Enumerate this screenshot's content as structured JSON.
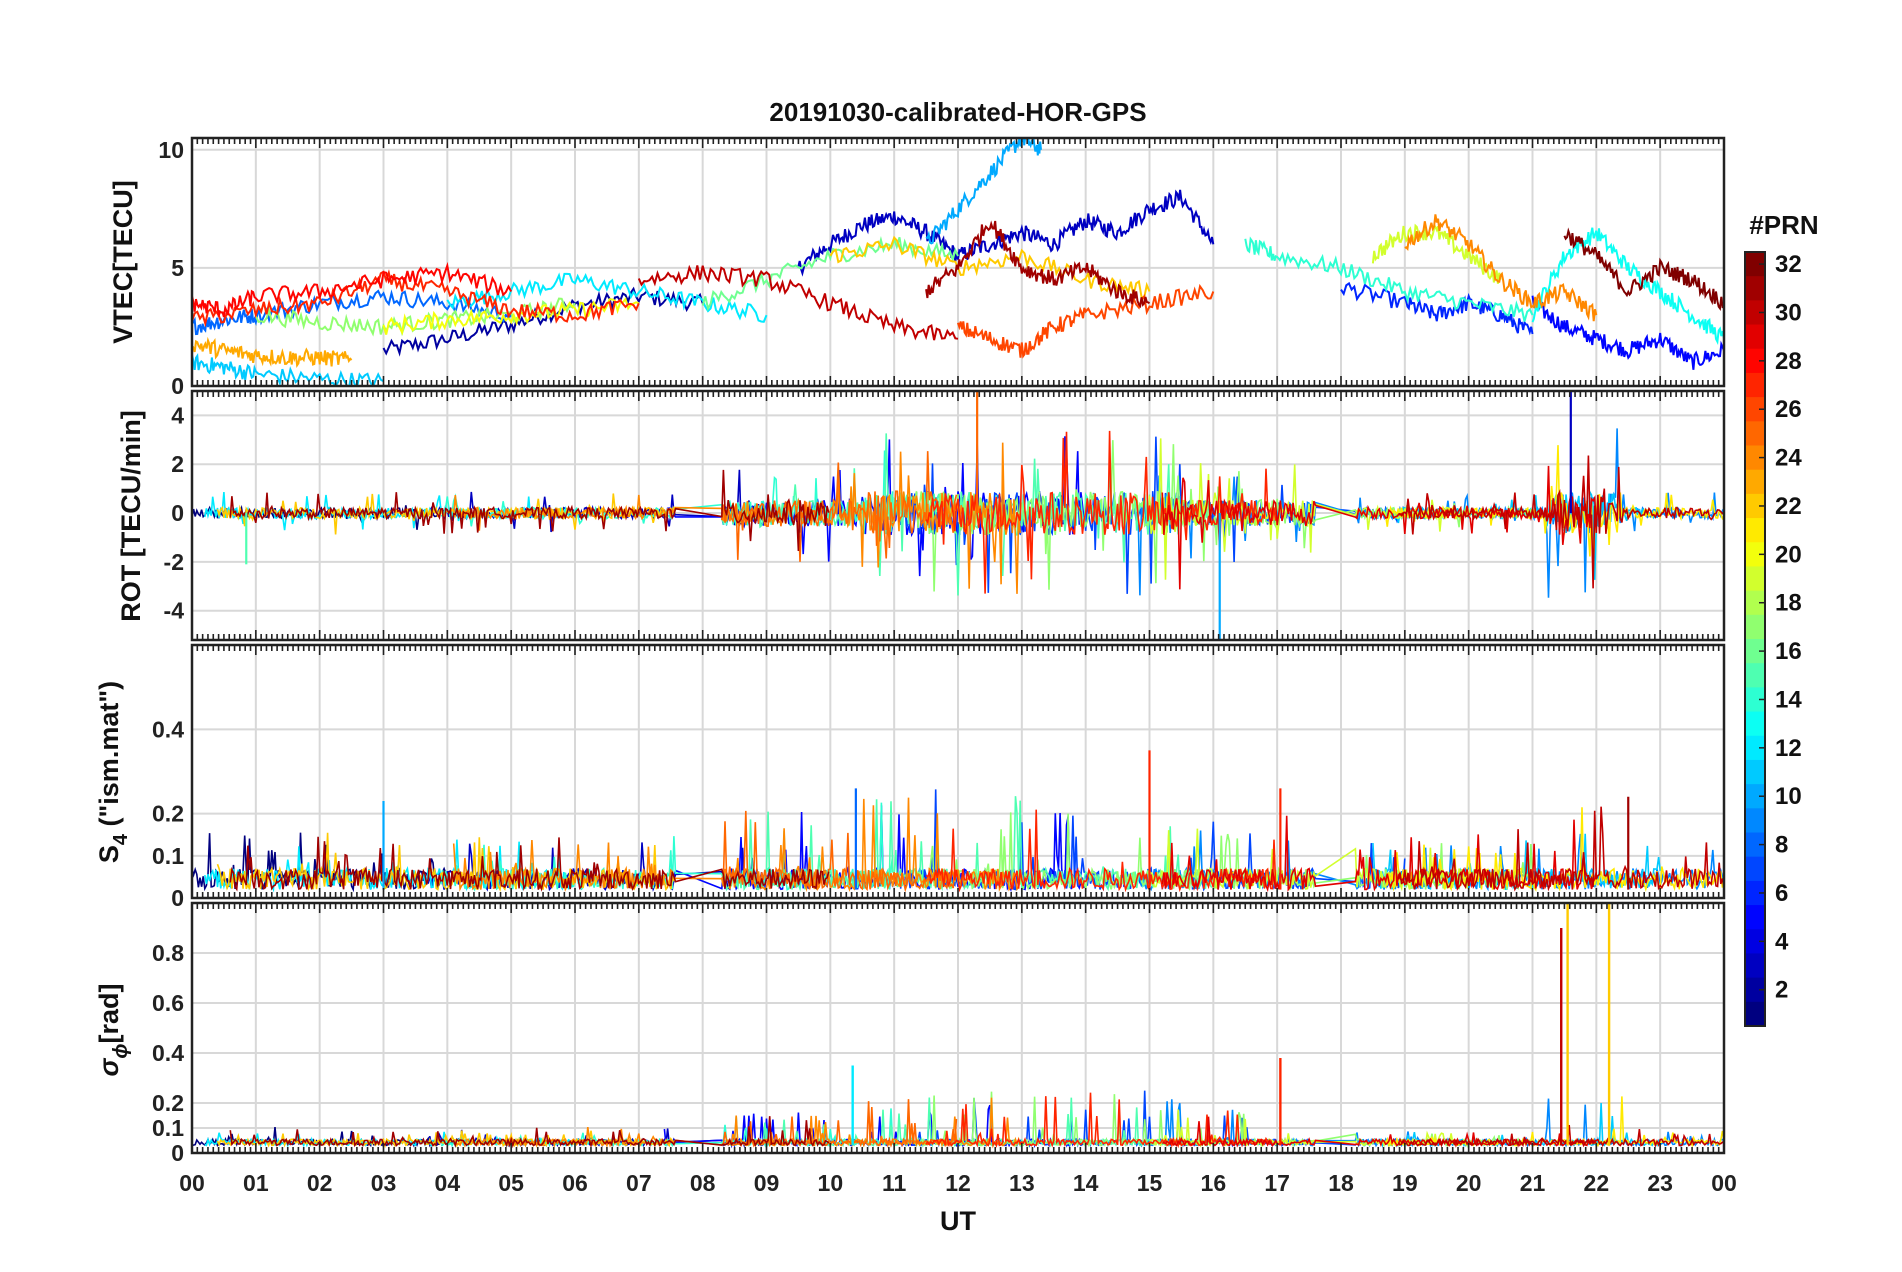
{
  "figure": {
    "title": "20191030-calibrated-HOR-GPS",
    "xlabel": "UT",
    "x_ticks": [
      "00",
      "01",
      "02",
      "03",
      "04",
      "05",
      "06",
      "07",
      "08",
      "09",
      "10",
      "11",
      "12",
      "13",
      "14",
      "15",
      "16",
      "17",
      "18",
      "19",
      "20",
      "21",
      "22",
      "23",
      "00"
    ]
  },
  "colorbar": {
    "title": "#PRN",
    "range": [
      1,
      32
    ],
    "ticks": [
      "2",
      "4",
      "6",
      "8",
      "10",
      "12",
      "14",
      "16",
      "18",
      "20",
      "22",
      "24",
      "26",
      "28",
      "30",
      "32"
    ],
    "tick_values": [
      2,
      4,
      6,
      8,
      10,
      12,
      14,
      16,
      18,
      20,
      22,
      24,
      26,
      28,
      30,
      32
    ],
    "colormap": "jet"
  },
  "panels": {
    "vtec": {
      "ylabel": "VTEC[TECU]",
      "ylim": [
        0,
        10.5
      ],
      "y_ticks": [
        "0",
        "5",
        "10"
      ],
      "y_tick_values": [
        0,
        5,
        10
      ]
    },
    "rot": {
      "ylabel": "ROT [TECU/min]",
      "ylim": [
        -5.2,
        5.0
      ],
      "y_ticks": [
        "-4",
        "-2",
        "0",
        "2",
        "4"
      ],
      "y_tick_values": [
        -4,
        -2,
        0,
        2,
        4
      ]
    },
    "s4": {
      "ylabel_main": "S",
      "ylabel_sub": "4",
      "ylabel_rest": " (\"ism.mat\")",
      "ylim": [
        0,
        0.6
      ],
      "y_ticks": [
        "0",
        "0.1",
        "0.2",
        "0.4"
      ],
      "y_tick_values": [
        0,
        0.1,
        0.2,
        0.4
      ]
    },
    "sigphi": {
      "ylabel_main": "σ",
      "ylabel_sub": "ϕ",
      "ylabel_rest": "[rad]",
      "ylim": [
        0,
        1.0
      ],
      "y_ticks": [
        "0",
        "0.1",
        "0.2",
        "0.4",
        "0.6",
        "0.8"
      ],
      "y_tick_values": [
        0,
        0.1,
        0.2,
        0.4,
        0.6,
        0.8
      ]
    }
  },
  "chart_data": [
    {
      "type": "line",
      "panel": "vtec",
      "ylabel": "VTEC[TECU]",
      "x_unit": "UT hour",
      "ylim": [
        0,
        10.5
      ],
      "series": [
        {
          "prn": 2,
          "x": [
            3.0,
            4.0,
            5.0,
            6.0,
            7.0,
            8.0
          ],
          "y": [
            1.5,
            2.0,
            2.6,
            3.4,
            3.8,
            3.5
          ]
        },
        {
          "prn": 3,
          "x": [
            9.5,
            10.0,
            10.5,
            11.0,
            11.5,
            12.0,
            12.5,
            13.0,
            13.5,
            14.0,
            14.5,
            15.0,
            15.5,
            16.0
          ],
          "y": [
            5.0,
            6.0,
            6.8,
            7.2,
            6.5,
            5.5,
            6.0,
            6.5,
            6.0,
            7.0,
            6.5,
            7.5,
            8.0,
            6.0
          ]
        },
        {
          "prn": 5,
          "x": [
            21.0,
            21.5,
            22.0,
            22.5,
            23.0,
            23.5,
            24.0
          ],
          "y": [
            3.5,
            2.5,
            2.0,
            1.5,
            2.0,
            1.0,
            1.5
          ]
        },
        {
          "prn": 6,
          "x": [
            18.0,
            19.0,
            19.5,
            20.0,
            20.5,
            21.0
          ],
          "y": [
            4.2,
            3.5,
            3.0,
            3.5,
            3.0,
            2.2
          ]
        },
        {
          "prn": 8,
          "x": [
            0.0,
            0.5,
            1.0,
            2.0,
            3.0,
            4.0,
            5.0
          ],
          "y": [
            2.5,
            2.8,
            3.0,
            3.5,
            3.8,
            3.5,
            3.0
          ]
        },
        {
          "prn": 10,
          "x": [
            11.5,
            12.0,
            12.5,
            13.0,
            13.3
          ],
          "y": [
            6.0,
            7.5,
            9.0,
            10.5,
            10.0
          ]
        },
        {
          "prn": 11,
          "x": [
            0.0,
            0.5,
            1.0,
            2.0,
            3.0
          ],
          "y": [
            1.0,
            0.8,
            0.5,
            0.3,
            0.2
          ]
        },
        {
          "prn": 12,
          "x": [
            4.0,
            5.0,
            6.0,
            7.0,
            8.0,
            9.0
          ],
          "y": [
            3.5,
            4.0,
            4.5,
            4.0,
            3.5,
            3.0
          ]
        },
        {
          "prn": 13,
          "x": [
            21.0,
            21.5,
            22.0,
            22.5,
            23.0,
            23.5,
            24.0
          ],
          "y": [
            3.0,
            5.5,
            6.5,
            5.0,
            4.0,
            3.0,
            2.0
          ]
        },
        {
          "prn": 14,
          "x": [
            16.5,
            17.0,
            18.0,
            19.0,
            20.0,
            21.0
          ],
          "y": [
            6.0,
            5.5,
            5.0,
            4.0,
            3.5,
            3.0
          ]
        },
        {
          "prn": 16,
          "x": [
            8.0,
            9.0,
            10.0,
            11.0,
            12.0
          ],
          "y": [
            3.5,
            4.5,
            5.5,
            6.0,
            5.5
          ]
        },
        {
          "prn": 17,
          "x": [
            1.0,
            2.0,
            3.0,
            4.0,
            5.0,
            6.0
          ],
          "y": [
            3.0,
            2.7,
            2.5,
            2.8,
            3.0,
            3.5
          ]
        },
        {
          "prn": 19,
          "x": [
            18.5,
            19.0,
            19.5,
            20.0,
            20.5
          ],
          "y": [
            5.5,
            6.5,
            6.5,
            5.5,
            4.5
          ]
        },
        {
          "prn": 20,
          "x": [
            3.0,
            4.0,
            5.0,
            6.0,
            7.0
          ],
          "y": [
            2.5,
            2.8,
            3.0,
            3.2,
            3.5
          ]
        },
        {
          "prn": 22,
          "x": [
            10.0,
            11.0,
            12.0,
            13.0,
            14.0,
            15.0
          ],
          "y": [
            5.5,
            6.0,
            5.0,
            5.5,
            4.5,
            4.0
          ]
        },
        {
          "prn": 23,
          "x": [
            0.0,
            0.5,
            1.0,
            1.5,
            2.0,
            2.5
          ],
          "y": [
            1.8,
            1.5,
            1.3,
            1.2,
            1.2,
            1.1
          ]
        },
        {
          "prn": 24,
          "x": [
            19.0,
            19.5,
            20.0,
            20.5,
            21.0,
            21.5,
            22.0
          ],
          "y": [
            6.0,
            7.0,
            6.0,
            4.5,
            3.5,
            4.0,
            3.0
          ]
        },
        {
          "prn": 26,
          "x": [
            12.0,
            12.5,
            13.0,
            13.5,
            14.0,
            15.0,
            16.0
          ],
          "y": [
            2.5,
            2.0,
            1.5,
            2.5,
            3.0,
            3.5,
            4.0
          ]
        },
        {
          "prn": 27,
          "x": [
            0.0,
            1.0,
            2.0,
            3.0,
            4.0,
            5.0,
            6.0,
            7.0
          ],
          "y": [
            2.8,
            3.2,
            3.5,
            4.5,
            4.0,
            3.2,
            3.0,
            3.5
          ]
        },
        {
          "prn": 28,
          "x": [
            0.0,
            0.5,
            1.0,
            2.0,
            3.0,
            4.0,
            5.0
          ],
          "y": [
            3.5,
            3.2,
            3.8,
            4.0,
            4.5,
            4.8,
            4.0
          ]
        },
        {
          "prn": 30,
          "x": [
            7.0,
            8.0,
            9.0,
            10.0,
            11.0,
            12.0
          ],
          "y": [
            4.5,
            4.8,
            4.5,
            3.5,
            2.5,
            2.0
          ]
        },
        {
          "prn": 31,
          "x": [
            11.5,
            12.0,
            12.5,
            13.0,
            13.5,
            14.0,
            14.5,
            15.0
          ],
          "y": [
            4.0,
            5.0,
            7.0,
            5.0,
            4.5,
            5.0,
            4.0,
            3.5
          ]
        },
        {
          "prn": 32,
          "x": [
            21.5,
            22.0,
            22.5,
            23.0,
            23.5,
            24.0
          ],
          "y": [
            6.5,
            5.5,
            4.0,
            5.0,
            4.5,
            3.5
          ]
        }
      ]
    },
    {
      "type": "line",
      "panel": "rot",
      "ylabel": "ROT [TECU/min]",
      "x_unit": "UT hour",
      "ylim": [
        -5.2,
        5.0
      ],
      "note_extremes": [
        {
          "prn": 25,
          "x": 12.3,
          "y": 5.0
        },
        {
          "prn": 3,
          "x": 21.6,
          "y": 5.0
        },
        {
          "prn": 10,
          "x": 16.1,
          "y": -5.2
        },
        {
          "prn": 15,
          "x": 0.85,
          "y": -2.1
        }
      ]
    },
    {
      "type": "line",
      "panel": "s4",
      "ylabel": "S4 (\"ism.mat\")",
      "x_unit": "UT hour",
      "ylim": [
        0,
        0.6
      ],
      "peaks": [
        {
          "prn": 27,
          "x": 15.0,
          "y": 0.35
        },
        {
          "prn": 27,
          "x": 17.05,
          "y": 0.26
        },
        {
          "prn": 31,
          "x": 22.5,
          "y": 0.24
        },
        {
          "prn": 10,
          "x": 3.0,
          "y": 0.23
        },
        {
          "prn": 8,
          "x": 10.4,
          "y": 0.26
        }
      ]
    },
    {
      "type": "line",
      "panel": "sigphi",
      "ylabel": "σϕ [rad]",
      "x_unit": "UT hour",
      "ylim": [
        0,
        1.0
      ],
      "peaks": [
        {
          "prn": 30,
          "x": 21.45,
          "y": 0.9
        },
        {
          "prn": 22,
          "x": 21.55,
          "y": 1.0
        },
        {
          "prn": 22,
          "x": 22.2,
          "y": 1.0
        },
        {
          "prn": 27,
          "x": 17.05,
          "y": 0.38
        },
        {
          "prn": 12,
          "x": 10.35,
          "y": 0.35
        }
      ]
    }
  ]
}
